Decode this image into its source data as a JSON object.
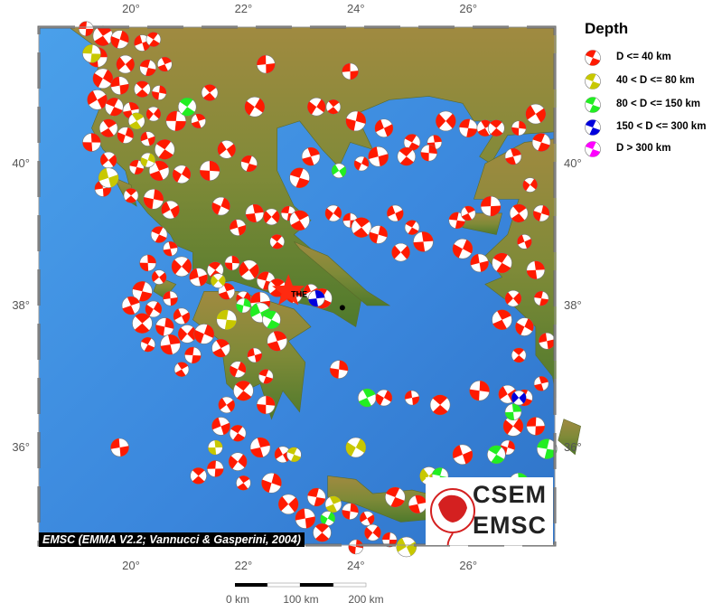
{
  "map": {
    "lon_ticks": [
      "20°",
      "22°",
      "24°",
      "26°"
    ],
    "lat_ticks": [
      "40°",
      "38°",
      "36°"
    ],
    "lon_values": [
      20,
      22,
      24,
      26
    ],
    "lat_values": [
      40,
      38,
      36
    ],
    "extent": {
      "lon": [
        18.35,
        27.56
      ],
      "lat": [
        34.62,
        41.92
      ]
    },
    "city": {
      "label": "THE",
      "lon": 22.8,
      "lat": 38.2,
      "color": "#ff2a10"
    },
    "athens_dot": {
      "lon": 23.76,
      "lat": 37.97
    },
    "colors": {
      "sea": "#3d8fe0",
      "land": "#8a8a3a",
      "frame": "#555555"
    }
  },
  "legend": {
    "title": "Depth",
    "items": [
      {
        "label": "D <= 40 km",
        "color": "#ff1a00"
      },
      {
        "label": "40 < D <= 80 km",
        "color": "#c8c800"
      },
      {
        "label": "80 < D <= 150 km",
        "color": "#22ee22"
      },
      {
        "label": "150 < D <= 300 km",
        "color": "#0000dd"
      },
      {
        "label": "D > 300 km",
        "color": "#ff00ff"
      }
    ]
  },
  "caption": "EMSC (EMMA V2.2; Vannucci & Gasperini, 2004)",
  "logo": {
    "line1": "CSEM",
    "line2": "EMSC"
  },
  "scale_bar": {
    "labels": [
      "0 km",
      "100 km",
      "200 km"
    ]
  },
  "events": [
    [
      19.2,
      41.9,
      0
    ],
    [
      19.5,
      41.8,
      0
    ],
    [
      19.8,
      41.75,
      0
    ],
    [
      20.2,
      41.7,
      0
    ],
    [
      20.4,
      41.75,
      0
    ],
    [
      19.4,
      41.5,
      0
    ],
    [
      19.9,
      41.4,
      0
    ],
    [
      20.3,
      41.35,
      0
    ],
    [
      20.6,
      41.4,
      0
    ],
    [
      19.5,
      41.2,
      0
    ],
    [
      19.8,
      41.1,
      0
    ],
    [
      20.2,
      41.05,
      0
    ],
    [
      20.5,
      41.0,
      0
    ],
    [
      19.4,
      40.9,
      0
    ],
    [
      19.7,
      40.8,
      0
    ],
    [
      20.0,
      40.75,
      0
    ],
    [
      20.4,
      40.7,
      0
    ],
    [
      20.8,
      40.6,
      0
    ],
    [
      19.6,
      40.5,
      0
    ],
    [
      19.9,
      40.4,
      0
    ],
    [
      20.3,
      40.35,
      0
    ],
    [
      20.6,
      40.2,
      0
    ],
    [
      19.3,
      40.3,
      0
    ],
    [
      19.6,
      40.05,
      0
    ],
    [
      20.1,
      39.95,
      0
    ],
    [
      20.5,
      39.9,
      0
    ],
    [
      20.9,
      39.85,
      0
    ],
    [
      19.5,
      39.65,
      0
    ],
    [
      20.0,
      39.55,
      0
    ],
    [
      20.4,
      39.5,
      0
    ],
    [
      20.7,
      39.35,
      0
    ],
    [
      20.5,
      39.0,
      0
    ],
    [
      20.7,
      38.8,
      0
    ],
    [
      20.9,
      38.55,
      0
    ],
    [
      19.3,
      41.55,
      1
    ],
    [
      20.1,
      40.6,
      1
    ],
    [
      20.3,
      40.05,
      1
    ],
    [
      19.6,
      39.8,
      1
    ],
    [
      21.0,
      40.8,
      2
    ],
    [
      20.3,
      38.6,
      0
    ],
    [
      20.5,
      38.4,
      0
    ],
    [
      20.2,
      38.2,
      0
    ],
    [
      20.0,
      38.0,
      0
    ],
    [
      20.4,
      37.95,
      0
    ],
    [
      20.7,
      38.1,
      0
    ],
    [
      20.2,
      37.75,
      0
    ],
    [
      20.6,
      37.7,
      0
    ],
    [
      20.9,
      37.85,
      0
    ],
    [
      20.3,
      37.45,
      0
    ],
    [
      20.7,
      37.45,
      0
    ],
    [
      21.0,
      37.6,
      0
    ],
    [
      21.1,
      37.3,
      0
    ],
    [
      20.9,
      37.1,
      0
    ],
    [
      21.3,
      37.6,
      0
    ],
    [
      21.2,
      38.4,
      0
    ],
    [
      21.5,
      38.5,
      0
    ],
    [
      21.8,
      38.6,
      0
    ],
    [
      22.1,
      38.5,
      0
    ],
    [
      22.4,
      38.35,
      0
    ],
    [
      21.7,
      38.2,
      0
    ],
    [
      22.0,
      38.1,
      0
    ],
    [
      22.3,
      38.05,
      0
    ],
    [
      22.6,
      38.25,
      0
    ],
    [
      22.9,
      38.15,
      0
    ],
    [
      23.2,
      38.2,
      0
    ],
    [
      23.4,
      38.1,
      0
    ],
    [
      22.2,
      39.3,
      0
    ],
    [
      22.5,
      39.25,
      0
    ],
    [
      22.8,
      39.3,
      0
    ],
    [
      23.0,
      39.2,
      0
    ],
    [
      21.6,
      39.4,
      0
    ],
    [
      21.9,
      39.1,
      0
    ],
    [
      22.6,
      38.9,
      0
    ],
    [
      21.4,
      39.9,
      0
    ],
    [
      21.7,
      40.2,
      0
    ],
    [
      22.1,
      40.0,
      0
    ],
    [
      21.2,
      40.6,
      0
    ],
    [
      22.2,
      40.8,
      0
    ],
    [
      22.4,
      41.4,
      0
    ],
    [
      21.4,
      41.0,
      0
    ],
    [
      22.0,
      38.0,
      2
    ],
    [
      22.3,
      37.9,
      2
    ],
    [
      22.5,
      37.8,
      2
    ],
    [
      23.3,
      38.1,
      3
    ],
    [
      21.55,
      38.35,
      1
    ],
    [
      21.7,
      37.8,
      1
    ],
    [
      21.6,
      37.4,
      0
    ],
    [
      21.9,
      37.1,
      0
    ],
    [
      22.2,
      37.3,
      0
    ],
    [
      22.0,
      36.8,
      0
    ],
    [
      22.4,
      36.6,
      0
    ],
    [
      21.7,
      36.6,
      0
    ],
    [
      22.4,
      37.0,
      0
    ],
    [
      22.6,
      37.5,
      0
    ],
    [
      23.3,
      40.8,
      0
    ],
    [
      23.9,
      41.3,
      0
    ],
    [
      23.6,
      40.8,
      0
    ],
    [
      24.0,
      40.6,
      0
    ],
    [
      24.5,
      40.5,
      0
    ],
    [
      25.0,
      40.3,
      0
    ],
    [
      25.4,
      40.3,
      0
    ],
    [
      25.6,
      40.6,
      0
    ],
    [
      26.0,
      40.5,
      0
    ],
    [
      26.3,
      40.5,
      0
    ],
    [
      24.1,
      40.0,
      0
    ],
    [
      24.4,
      40.1,
      0
    ],
    [
      24.9,
      40.1,
      0
    ],
    [
      25.3,
      40.15,
      0
    ],
    [
      23.7,
      39.9,
      2
    ],
    [
      23.0,
      39.8,
      0
    ],
    [
      23.2,
      40.1,
      0
    ],
    [
      23.6,
      39.3,
      0
    ],
    [
      23.9,
      39.2,
      0
    ],
    [
      24.1,
      39.1,
      0
    ],
    [
      24.4,
      39.0,
      0
    ],
    [
      24.7,
      39.3,
      0
    ],
    [
      25.0,
      39.1,
      0
    ],
    [
      25.2,
      38.9,
      0
    ],
    [
      24.8,
      38.75,
      0
    ],
    [
      25.8,
      39.2,
      0
    ],
    [
      26.0,
      39.3,
      0
    ],
    [
      25.9,
      38.8,
      0
    ],
    [
      26.2,
      38.6,
      0
    ],
    [
      26.5,
      40.5,
      0
    ],
    [
      26.9,
      40.5,
      0
    ],
    [
      27.2,
      40.7,
      0
    ],
    [
      27.3,
      40.3,
      0
    ],
    [
      26.8,
      40.1,
      0
    ],
    [
      27.1,
      39.7,
      0
    ],
    [
      26.4,
      39.4,
      0
    ],
    [
      26.9,
      39.3,
      0
    ],
    [
      27.3,
      39.3,
      0
    ],
    [
      27.0,
      38.9,
      0
    ],
    [
      26.6,
      38.6,
      0
    ],
    [
      27.2,
      38.5,
      0
    ],
    [
      26.8,
      38.1,
      0
    ],
    [
      27.3,
      38.1,
      0
    ],
    [
      26.6,
      37.8,
      0
    ],
    [
      27.0,
      37.7,
      0
    ],
    [
      27.4,
      37.5,
      0
    ],
    [
      26.9,
      37.3,
      0
    ],
    [
      26.2,
      36.8,
      0
    ],
    [
      26.7,
      36.75,
      0
    ],
    [
      27.0,
      36.7,
      0
    ],
    [
      27.3,
      36.9,
      0
    ],
    [
      26.8,
      36.3,
      0
    ],
    [
      27.2,
      36.3,
      0
    ],
    [
      27.4,
      36.0,
      0
    ],
    [
      26.7,
      36.0,
      0
    ],
    [
      25.9,
      35.9,
      0
    ],
    [
      26.5,
      35.9,
      2
    ],
    [
      26.8,
      36.5,
      2
    ],
    [
      26.9,
      36.7,
      3
    ],
    [
      27.4,
      35.98,
      2
    ],
    [
      24.2,
      36.7,
      2
    ],
    [
      24.5,
      36.7,
      0
    ],
    [
      25.0,
      36.7,
      0
    ],
    [
      25.5,
      36.6,
      0
    ],
    [
      23.7,
      37.1,
      0
    ],
    [
      22.7,
      35.9,
      0
    ],
    [
      22.9,
      35.9,
      1
    ],
    [
      22.3,
      36.0,
      0
    ],
    [
      21.9,
      35.8,
      0
    ],
    [
      21.5,
      35.7,
      0
    ],
    [
      22.0,
      35.5,
      0
    ],
    [
      22.5,
      35.5,
      0
    ],
    [
      21.6,
      36.3,
      0
    ],
    [
      21.9,
      36.2,
      0
    ],
    [
      21.5,
      36.0,
      1
    ],
    [
      22.8,
      35.2,
      0
    ],
    [
      23.3,
      35.3,
      0
    ],
    [
      23.6,
      35.2,
      1
    ],
    [
      23.5,
      35.0,
      2
    ],
    [
      23.1,
      35.0,
      0
    ],
    [
      23.4,
      34.8,
      0
    ],
    [
      23.9,
      35.1,
      0
    ],
    [
      24.2,
      35.0,
      0
    ],
    [
      24.7,
      35.3,
      0
    ],
    [
      25.1,
      35.2,
      0
    ],
    [
      24.3,
      34.8,
      0
    ],
    [
      24.6,
      34.7,
      0
    ],
    [
      25.5,
      35.0,
      0
    ],
    [
      25.8,
      35.4,
      2
    ],
    [
      26.1,
      35.3,
      0
    ],
    [
      26.4,
      35.4,
      2
    ],
    [
      26.9,
      35.5,
      2
    ],
    [
      25.3,
      35.6,
      1
    ],
    [
      25.5,
      35.6,
      2
    ],
    [
      26.0,
      35.1,
      0
    ],
    [
      24.0,
      36.0,
      1
    ],
    [
      19.8,
      36.0,
      0
    ],
    [
      21.2,
      35.6,
      0
    ],
    [
      24.0,
      34.6,
      0
    ],
    [
      24.9,
      34.6,
      1
    ]
  ]
}
